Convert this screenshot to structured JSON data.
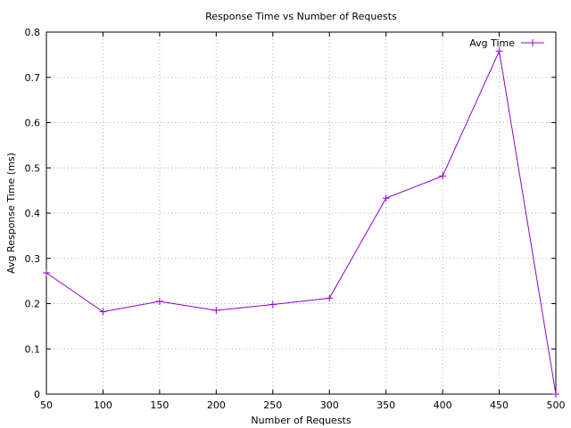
{
  "chart_data": {
    "type": "line",
    "title": "Response Time vs Number of Requests",
    "xlabel": "Number of Requests",
    "ylabel": "Avg Response Time (ms)",
    "xlim": [
      50,
      500
    ],
    "ylim": [
      0,
      0.8
    ],
    "x_ticks": [
      "50",
      "100",
      "150",
      "200",
      "250",
      "300",
      "350",
      "400",
      "450",
      "500"
    ],
    "y_ticks": [
      "0",
      "0.1",
      "0.2",
      "0.3",
      "0.4",
      "0.5",
      "0.6",
      "0.7",
      "0.8"
    ],
    "grid": true,
    "legend_position": "top-right",
    "series": [
      {
        "name": "Avg Time",
        "color": "#9400d3",
        "x": [
          50,
          100,
          150,
          200,
          250,
          300,
          350,
          400,
          450,
          500
        ],
        "values": [
          0.268,
          0.182,
          0.205,
          0.185,
          0.198,
          0.212,
          0.433,
          0.482,
          0.758,
          0.0
        ]
      }
    ]
  }
}
